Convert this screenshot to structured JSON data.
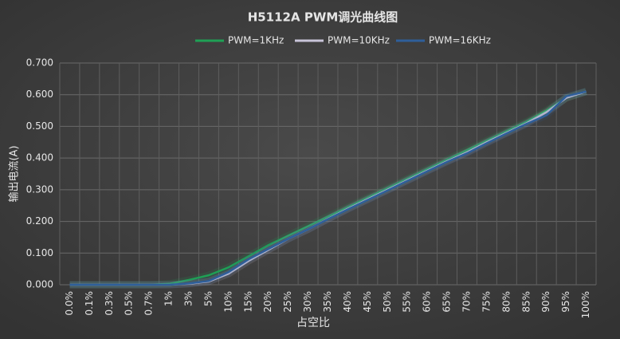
{
  "chart_data": {
    "type": "line",
    "title": "H5112A  PWM调光曲线图",
    "x_label": "占空比",
    "y_label": "输出电流(A)",
    "categories": [
      "0.0%",
      "0.1%",
      "0.3%",
      "0.5%",
      "0.7%",
      "1%",
      "3%",
      "5%",
      "10%",
      "15%",
      "20%",
      "25%",
      "30%",
      "35%",
      "40%",
      "45%",
      "50%",
      "55%",
      "60%",
      "65%",
      "70%",
      "75%",
      "80%",
      "85%",
      "90%",
      "95%",
      "100%"
    ],
    "series": [
      {
        "name": "PWM=1KHz",
        "color": "#1fa055",
        "values": [
          0,
          0,
          0,
          0,
          0,
          0.003,
          0.015,
          0.03,
          0.055,
          0.09,
          0.125,
          0.155,
          0.185,
          0.215,
          0.245,
          0.275,
          0.305,
          0.335,
          0.365,
          0.395,
          0.425,
          0.455,
          0.485,
          0.515,
          0.55,
          0.59,
          0.61
        ]
      },
      {
        "name": "PWM=10KHz",
        "color": "#c8c4d8",
        "values": [
          0,
          0,
          0,
          0,
          0,
          0,
          0.003,
          0.01,
          0.035,
          0.075,
          0.11,
          0.145,
          0.175,
          0.208,
          0.24,
          0.27,
          0.3,
          0.33,
          0.36,
          0.39,
          0.418,
          0.45,
          0.48,
          0.51,
          0.545,
          0.59,
          0.61
        ]
      },
      {
        "name": "PWM=16KHz",
        "color": "#2f5f9a",
        "values": [
          0,
          0,
          0,
          0,
          0,
          0,
          0.004,
          0.012,
          0.04,
          0.08,
          0.113,
          0.145,
          0.175,
          0.207,
          0.238,
          0.268,
          0.298,
          0.328,
          0.358,
          0.388,
          0.415,
          0.447,
          0.478,
          0.508,
          0.535,
          0.595,
          0.61
        ]
      }
    ],
    "ylim": [
      0,
      0.7
    ],
    "yticks": [
      {
        "value": 0,
        "label": "0.000"
      },
      {
        "value": 0.1,
        "label": "0.100"
      },
      {
        "value": 0.2,
        "label": "0.200"
      },
      {
        "value": 0.3,
        "label": "0.300"
      },
      {
        "value": 0.4,
        "label": "0.400"
      },
      {
        "value": 0.5,
        "label": "0.500"
      },
      {
        "value": 0.6,
        "label": "0.600"
      },
      {
        "value": 0.7,
        "label": "0.700"
      }
    ],
    "grid": true,
    "legend": "top"
  }
}
